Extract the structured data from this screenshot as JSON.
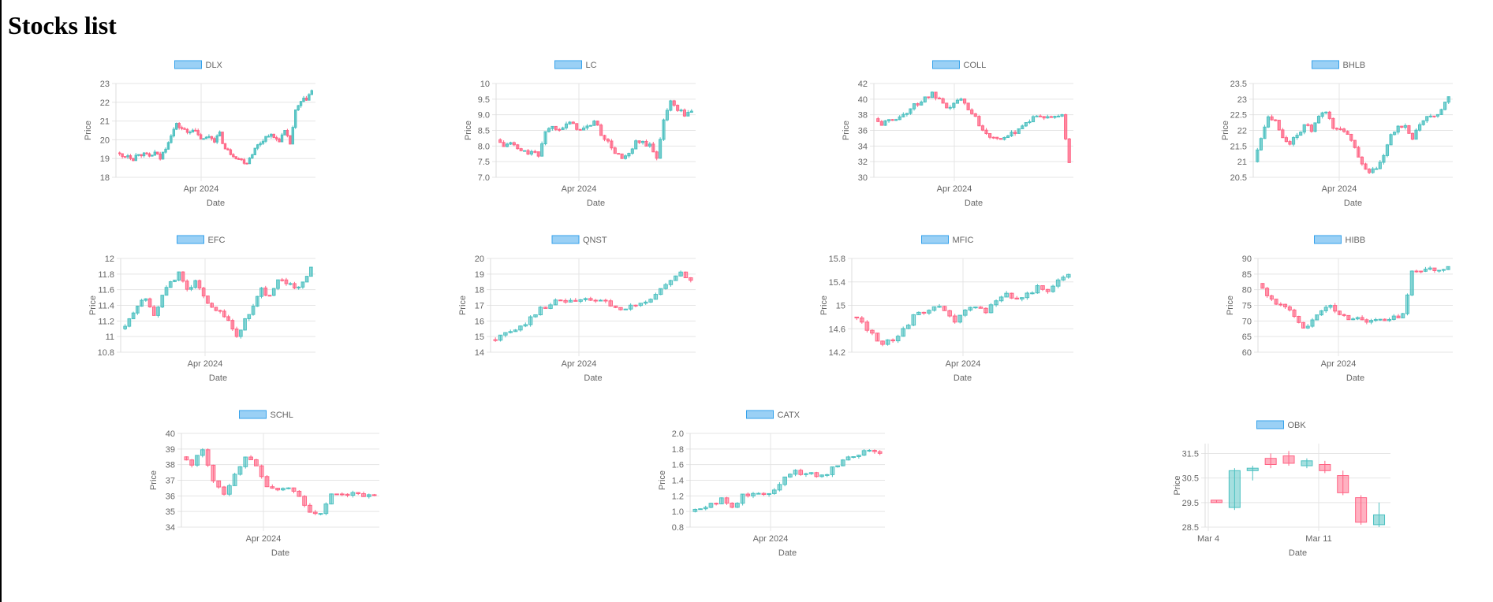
{
  "page": {
    "title": "Stocks list"
  },
  "colors": {
    "up": "#4bc0c0",
    "down": "#ff6384",
    "grid": "#e5e5e5",
    "text": "#666666",
    "legend_fill": "#9ad0f5",
    "legend_stroke": "#36a2eb"
  },
  "chart_data": [
    {
      "type": "candlestick",
      "legend": "DLX",
      "xlabel": "Date",
      "ylabel": "Price",
      "yticks": [
        18,
        19,
        20,
        21,
        22,
        23
      ],
      "ylim": [
        18,
        23
      ],
      "x_tick_labels": [
        "Apr 2024"
      ],
      "path": [
        19.3,
        19.1,
        19.2,
        19.0,
        19.3,
        19.2,
        19.1,
        19.3,
        19.0,
        19.6,
        20.3,
        20.8,
        20.6,
        20.4,
        20.6,
        20.2,
        20.0,
        20.2,
        20.0,
        20.3,
        19.5,
        19.3,
        19.1,
        18.9,
        18.8,
        19.3,
        19.7,
        20.0,
        20.3,
        20.1,
        20.0,
        20.4,
        19.8,
        21.5,
        22.0,
        22.2,
        22.6
      ]
    },
    {
      "type": "candlestick",
      "legend": "LC",
      "xlabel": "Date",
      "ylabel": "Price",
      "yticks": [
        7.0,
        7.5,
        8.0,
        8.5,
        9.0,
        9.5,
        10.0
      ],
      "ylim": [
        7.0,
        10.0
      ],
      "x_tick_labels": [
        "Apr 2024"
      ],
      "path": [
        8.2,
        8.0,
        8.1,
        7.9,
        7.8,
        7.8,
        7.7,
        8.5,
        8.6,
        8.6,
        8.7,
        8.7,
        8.5,
        8.6,
        8.8,
        8.4,
        8.1,
        7.8,
        7.6,
        7.7,
        8.1,
        8.1,
        8.0,
        7.6,
        8.9,
        9.4,
        9.2,
        9.0,
        9.1
      ]
    },
    {
      "type": "candlestick",
      "legend": "COLL",
      "xlabel": "Date",
      "ylabel": "Price",
      "yticks": [
        30,
        32,
        34,
        36,
        38,
        40,
        42
      ],
      "ylim": [
        30,
        42
      ],
      "x_tick_labels": [
        "Apr 2024"
      ],
      "path": [
        37.5,
        36.8,
        37.2,
        37.6,
        38.0,
        38.8,
        39.5,
        40.1,
        40.6,
        39.8,
        38.6,
        39.5,
        39.9,
        38.9,
        37.6,
        36.1,
        35.4,
        35.2,
        34.8,
        35.5,
        36.3,
        37.0,
        37.6,
        37.8,
        37.5,
        37.8,
        38.0,
        32.0
      ]
    },
    {
      "type": "candlestick",
      "legend": "BHLB",
      "xlabel": "Date",
      "ylabel": "Price",
      "yticks": [
        20.5,
        21.0,
        21.5,
        22.0,
        22.5,
        23.0,
        23.5
      ],
      "ylim": [
        20.5,
        23.5
      ],
      "x_tick_labels": [
        "Apr 2024"
      ],
      "path": [
        21.0,
        21.8,
        22.5,
        22.3,
        21.8,
        21.6,
        21.8,
        22.2,
        22.0,
        22.4,
        22.6,
        22.1,
        22.0,
        21.9,
        21.5,
        20.9,
        20.7,
        20.7,
        21.2,
        21.8,
        22.1,
        22.2,
        21.7,
        22.2,
        22.4,
        22.5,
        22.6,
        23.1
      ]
    },
    {
      "type": "candlestick",
      "legend": "EFC",
      "xlabel": "Date",
      "ylabel": "Price",
      "yticks": [
        10.8,
        11.0,
        11.2,
        11.4,
        11.6,
        11.8,
        12.0
      ],
      "ylim": [
        10.8,
        12.0
      ],
      "x_tick_labels": [
        "Apr 2024"
      ],
      "path": [
        11.1,
        11.2,
        11.4,
        11.5,
        11.3,
        11.5,
        11.7,
        11.8,
        11.6,
        11.7,
        11.5,
        11.4,
        11.3,
        11.2,
        11.0,
        11.2,
        11.4,
        11.6,
        11.5,
        11.7,
        11.7,
        11.6,
        11.7,
        11.9
      ]
    },
    {
      "type": "candlestick",
      "legend": "QNST",
      "xlabel": "Date",
      "ylabel": "Price",
      "yticks": [
        14,
        15,
        16,
        17,
        18,
        19,
        20
      ],
      "ylim": [
        14,
        20
      ],
      "x_tick_labels": [
        "Apr 2024"
      ],
      "path": [
        14.8,
        15.0,
        15.3,
        15.6,
        16.2,
        16.8,
        17.1,
        17.3,
        17.2,
        17.3,
        17.4,
        17.2,
        17.1,
        16.6,
        16.9,
        17.2,
        17.4,
        18.0,
        18.6,
        19.0,
        18.6
      ]
    },
    {
      "type": "candlestick",
      "legend": "MFIC",
      "xlabel": "Date",
      "ylabel": "Price",
      "yticks": [
        14.2,
        14.6,
        15.0,
        15.4,
        15.8
      ],
      "ylim": [
        14.2,
        15.8
      ],
      "x_tick_labels": [
        "Apr 2024"
      ],
      "path": [
        14.8,
        14.7,
        14.5,
        14.35,
        14.4,
        14.6,
        14.8,
        14.9,
        15.0,
        14.9,
        14.7,
        14.9,
        15.0,
        14.9,
        15.1,
        15.2,
        15.1,
        15.2,
        15.3,
        15.2,
        15.4,
        15.55
      ]
    },
    {
      "type": "candlestick",
      "legend": "HIBB",
      "xlabel": "Date",
      "ylabel": "Price",
      "yticks": [
        60,
        65,
        70,
        75,
        80,
        85,
        90
      ],
      "ylim": [
        60,
        90
      ],
      "x_tick_labels": [
        "Apr 2024"
      ],
      "path": [
        82,
        78,
        76,
        74,
        72,
        68,
        70,
        73,
        75,
        72,
        71,
        71,
        70,
        70.5,
        70,
        71,
        72,
        86,
        86,
        86.3,
        86.5,
        86.8
      ]
    },
    {
      "type": "candlestick",
      "legend": "SCHL",
      "xlabel": "Date",
      "ylabel": "Price",
      "yticks": [
        34,
        35,
        36,
        37,
        38,
        39,
        40
      ],
      "ylim": [
        34,
        40
      ],
      "x_tick_labels": [
        "Apr 2024"
      ],
      "path": [
        38.5,
        38.0,
        39.0,
        37.0,
        36.0,
        37.5,
        38.5,
        38.0,
        36.5,
        36.4,
        36.5,
        36.0,
        35.0,
        34.8,
        36.0,
        36.2,
        36.1,
        36.0,
        35.9
      ]
    },
    {
      "type": "candlestick",
      "legend": "CATX",
      "xlabel": "Date",
      "ylabel": "Price",
      "yticks": [
        0.8,
        1.0,
        1.2,
        1.4,
        1.6,
        1.8,
        2.0
      ],
      "ylim": [
        0.8,
        2.0
      ],
      "x_tick_labels": [
        "Apr 2024"
      ],
      "path": [
        1.0,
        1.05,
        1.1,
        1.15,
        1.05,
        1.2,
        1.25,
        1.2,
        1.3,
        1.45,
        1.5,
        1.5,
        1.45,
        1.5,
        1.6,
        1.7,
        1.75,
        1.8,
        1.75
      ]
    },
    {
      "type": "candlestick",
      "legend": "OBK",
      "xlabel": "Date",
      "ylabel": "Price",
      "yticks": [
        28.5,
        29.5,
        30.5,
        31.5
      ],
      "ylim": [
        28.5,
        31.9
      ],
      "x_tick_labels": [
        "Mar 4",
        "Mar 11"
      ],
      "candles": [
        {
          "o": 29.6,
          "h": 29.6,
          "l": 29.5,
          "c": 29.5
        },
        {
          "o": 29.3,
          "h": 30.9,
          "l": 29.2,
          "c": 30.8
        },
        {
          "o": 30.8,
          "h": 31.0,
          "l": 30.4,
          "c": 30.9
        },
        {
          "o": 31.3,
          "h": 31.5,
          "l": 30.9,
          "c": 31.05
        },
        {
          "o": 31.4,
          "h": 31.6,
          "l": 31.0,
          "c": 31.1
        },
        {
          "o": 31.0,
          "h": 31.3,
          "l": 30.9,
          "c": 31.2
        },
        {
          "o": 31.05,
          "h": 31.2,
          "l": 30.7,
          "c": 30.8
        },
        {
          "o": 30.6,
          "h": 30.8,
          "l": 29.8,
          "c": 29.9
        },
        {
          "o": 29.7,
          "h": 29.8,
          "l": 28.6,
          "c": 28.7
        },
        {
          "o": 28.6,
          "h": 29.5,
          "l": 28.5,
          "c": 29.0
        }
      ]
    }
  ]
}
